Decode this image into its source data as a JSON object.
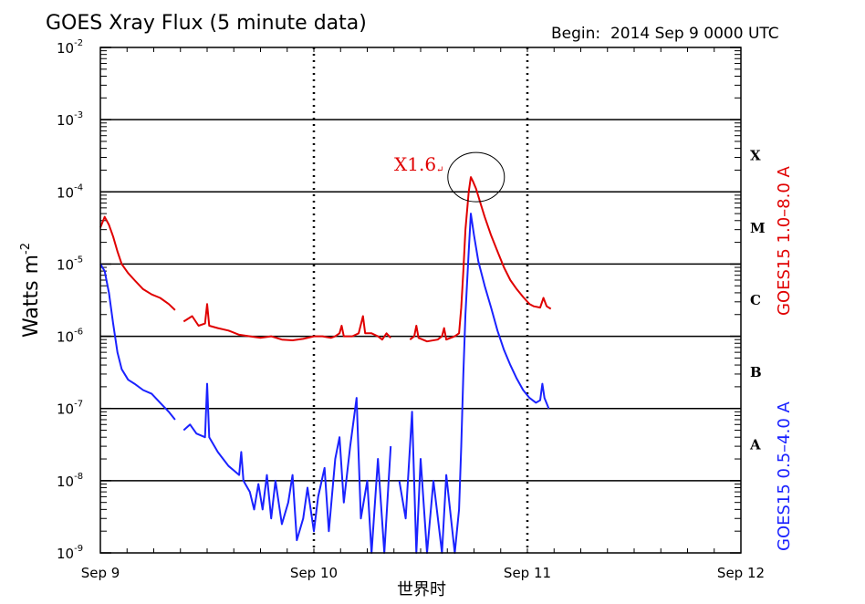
{
  "chart_data": {
    "type": "line",
    "title": "GOES Xray Flux (5 minute data)",
    "begin_label": "Begin:  2014 Sep 9 0000 UTC",
    "ylabel": "Watts m",
    "ylabel_exp": "-2",
    "xlabel": "世界时",
    "yscale": "log",
    "ylim_exponents": [
      -9,
      -2
    ],
    "y_ticks": [
      {
        "base": "10",
        "exp": "-9",
        "value": 1e-09
      },
      {
        "base": "10",
        "exp": "-8",
        "value": 1e-08
      },
      {
        "base": "10",
        "exp": "-7",
        "value": 1e-07
      },
      {
        "base": "10",
        "exp": "-6",
        "value": 1e-06
      },
      {
        "base": "10",
        "exp": "-5",
        "value": 1e-05
      },
      {
        "base": "10",
        "exp": "-4",
        "value": 0.0001
      },
      {
        "base": "10",
        "exp": "-3",
        "value": 0.001
      },
      {
        "base": "10",
        "exp": "-2",
        "value": 0.01
      }
    ],
    "x_ticks": [
      {
        "label": "Sep 9",
        "day": 0
      },
      {
        "label": "Sep 10",
        "day": 1
      },
      {
        "label": "Sep 11",
        "day": 2
      },
      {
        "label": "Sep 12",
        "day": 3
      }
    ],
    "flare_classes": [
      {
        "letter": "A",
        "exp": -7.5
      },
      {
        "letter": "B",
        "exp": -6.5
      },
      {
        "letter": "C",
        "exp": -5.5
      },
      {
        "letter": "M",
        "exp": -4.5
      },
      {
        "letter": "X",
        "exp": -3.5
      }
    ],
    "gridlines_exp": [
      -8,
      -7,
      -6,
      -5,
      -4,
      -3
    ],
    "annotation": {
      "text": "X1.6",
      "mark": "↵",
      "x_day": 1.76,
      "y": 0.00016
    },
    "series": [
      {
        "name": "GOES15 1.0–8.0 A",
        "color": "#e00000",
        "segments": [
          [
            [
              0.0,
              3.2e-05
            ],
            [
              0.02,
              4.5e-05
            ],
            [
              0.04,
              3.5e-05
            ],
            [
              0.06,
              2.4e-05
            ],
            [
              0.08,
              1.5e-05
            ],
            [
              0.1,
              1e-05
            ],
            [
              0.13,
              7.5e-06
            ],
            [
              0.16,
              6e-06
            ],
            [
              0.2,
              4.5e-06
            ],
            [
              0.24,
              3.8e-06
            ],
            [
              0.28,
              3.4e-06
            ],
            [
              0.32,
              2.8e-06
            ],
            [
              0.35,
              2.3e-06
            ]
          ],
          [
            [
              0.39,
              1.6e-06
            ],
            [
              0.43,
              1.9e-06
            ],
            [
              0.46,
              1.4e-06
            ],
            [
              0.49,
              1.5e-06
            ],
            [
              0.5,
              2.8e-06
            ],
            [
              0.51,
              1.4e-06
            ],
            [
              0.55,
              1.3e-06
            ],
            [
              0.6,
              1.2e-06
            ],
            [
              0.65,
              1.05e-06
            ],
            [
              0.7,
              1e-06
            ],
            [
              0.75,
              9.5e-07
            ],
            [
              0.8,
              1e-06
            ],
            [
              0.85,
              9e-07
            ],
            [
              0.9,
              8.8e-07
            ],
            [
              0.95,
              9.2e-07
            ],
            [
              1.0,
              1e-06
            ],
            [
              1.04,
              1e-06
            ],
            [
              1.08,
              9.5e-07
            ],
            [
              1.1,
              1e-06
            ],
            [
              1.12,
              1.1e-06
            ],
            [
              1.13,
              1.4e-06
            ],
            [
              1.14,
              1e-06
            ],
            [
              1.18,
              1e-06
            ],
            [
              1.21,
              1.1e-06
            ],
            [
              1.23,
              1.9e-06
            ],
            [
              1.24,
              1.1e-06
            ],
            [
              1.27,
              1.1e-06
            ],
            [
              1.3,
              1e-06
            ],
            [
              1.32,
              9e-07
            ],
            [
              1.34,
              1.1e-06
            ],
            [
              1.36,
              9.5e-07
            ]
          ],
          [
            [
              1.45,
              9e-07
            ],
            [
              1.47,
              1e-06
            ],
            [
              1.48,
              1.4e-06
            ],
            [
              1.49,
              9.5e-07
            ],
            [
              1.53,
              8.5e-07
            ],
            [
              1.58,
              9e-07
            ],
            [
              1.6,
              1e-06
            ],
            [
              1.61,
              1.3e-06
            ],
            [
              1.62,
              9e-07
            ],
            [
              1.66,
              1e-06
            ],
            [
              1.68,
              1.1e-06
            ],
            [
              1.69,
              2.5e-06
            ],
            [
              1.7,
              8e-06
            ],
            [
              1.71,
              3e-05
            ],
            [
              1.725,
              0.0001
            ],
            [
              1.735,
              0.00016
            ],
            [
              1.745,
              0.00014
            ],
            [
              1.76,
              0.00011
            ],
            [
              1.78,
              7e-05
            ],
            [
              1.8,
              4.5e-05
            ],
            [
              1.83,
              2.5e-05
            ],
            [
              1.86,
              1.5e-05
            ],
            [
              1.89,
              9e-06
            ],
            [
              1.92,
              6e-06
            ],
            [
              1.95,
              4.5e-06
            ],
            [
              1.98,
              3.5e-06
            ],
            [
              2.01,
              2.8e-06
            ],
            [
              2.03,
              2.6e-06
            ],
            [
              2.06,
              2.5e-06
            ],
            [
              2.075,
              3.4e-06
            ],
            [
              2.09,
              2.6e-06
            ],
            [
              2.11,
              2.4e-06
            ]
          ]
        ]
      },
      {
        "name": "GOES15 0.5–4.0 A",
        "color": "#1a22ff",
        "segments": [
          [
            [
              0.0,
              1e-05
            ],
            [
              0.02,
              8e-06
            ],
            [
              0.04,
              4e-06
            ],
            [
              0.06,
              1.5e-06
            ],
            [
              0.08,
              6e-07
            ],
            [
              0.1,
              3.5e-07
            ],
            [
              0.13,
              2.5e-07
            ],
            [
              0.16,
              2.2e-07
            ],
            [
              0.2,
              1.8e-07
            ],
            [
              0.24,
              1.6e-07
            ],
            [
              0.28,
              1.2e-07
            ],
            [
              0.32,
              9e-08
            ],
            [
              0.35,
              7e-08
            ]
          ],
          [
            [
              0.39,
              5e-08
            ],
            [
              0.42,
              6e-08
            ],
            [
              0.45,
              4.5e-08
            ],
            [
              0.49,
              4e-08
            ],
            [
              0.5,
              2.2e-07
            ],
            [
              0.51,
              4e-08
            ],
            [
              0.55,
              2.5e-08
            ],
            [
              0.6,
              1.6e-08
            ],
            [
              0.65,
              1.2e-08
            ],
            [
              0.66,
              2.5e-08
            ],
            [
              0.67,
              1e-08
            ],
            [
              0.7,
              7e-09
            ],
            [
              0.72,
              4e-09
            ],
            [
              0.74,
              9e-09
            ],
            [
              0.76,
              4e-09
            ],
            [
              0.78,
              1.2e-08
            ],
            [
              0.8,
              3e-09
            ],
            [
              0.82,
              1e-08
            ],
            [
              0.85,
              2.5e-09
            ],
            [
              0.88,
              5e-09
            ],
            [
              0.9,
              1.2e-08
            ],
            [
              0.92,
              1.5e-09
            ],
            [
              0.95,
              3e-09
            ],
            [
              0.97,
              8e-09
            ],
            [
              1.0,
              2e-09
            ],
            [
              1.02,
              6e-09
            ],
            [
              1.05,
              1.5e-08
            ],
            [
              1.07,
              2e-09
            ],
            [
              1.1,
              2e-08
            ],
            [
              1.12,
              4e-08
            ],
            [
              1.14,
              5e-09
            ],
            [
              1.17,
              3e-08
            ],
            [
              1.2,
              1.4e-07
            ],
            [
              1.22,
              3e-09
            ],
            [
              1.25,
              1e-08
            ],
            [
              1.27,
              1e-09
            ],
            [
              1.3,
              2e-08
            ],
            [
              1.33,
              1e-09
            ],
            [
              1.36,
              3e-08
            ]
          ],
          [
            [
              1.4,
              1e-08
            ],
            [
              1.43,
              3e-09
            ],
            [
              1.46,
              9e-08
            ],
            [
              1.48,
              1e-09
            ],
            [
              1.5,
              2e-08
            ],
            [
              1.53,
              1e-09
            ],
            [
              1.56,
              1e-08
            ],
            [
              1.6,
              1e-09
            ],
            [
              1.62,
              1.2e-08
            ],
            [
              1.66,
              1e-09
            ],
            [
              1.68,
              4e-09
            ],
            [
              1.69,
              3e-08
            ],
            [
              1.7,
              3e-07
            ],
            [
              1.71,
              2e-06
            ],
            [
              1.725,
              1.5e-05
            ],
            [
              1.735,
              5e-05
            ],
            [
              1.75,
              2.5e-05
            ],
            [
              1.77,
              1.1e-05
            ],
            [
              1.8,
              5e-06
            ],
            [
              1.83,
              2.5e-06
            ],
            [
              1.86,
              1.2e-06
            ],
            [
              1.89,
              6.5e-07
            ],
            [
              1.92,
              4e-07
            ],
            [
              1.95,
              2.6e-07
            ],
            [
              1.98,
              1.8e-07
            ],
            [
              2.01,
              1.4e-07
            ],
            [
              2.04,
              1.2e-07
            ],
            [
              2.06,
              1.3e-07
            ],
            [
              2.07,
              2.2e-07
            ],
            [
              2.08,
              1.4e-07
            ],
            [
              2.1,
              1e-07
            ]
          ]
        ]
      }
    ]
  }
}
